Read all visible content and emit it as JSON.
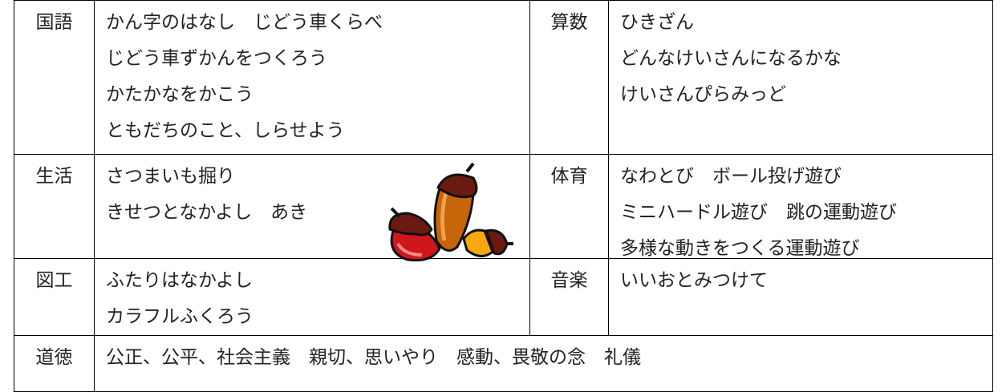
{
  "table": {
    "rows": [
      [
        {
          "subject": "国語",
          "lines": [
            "かん字のはなし　じどう車くらべ",
            "じどう車ずかんをつくろう",
            "かたかなをかこう",
            "ともだちのこと、しらせよう"
          ]
        },
        {
          "subject": "算数",
          "lines": [
            "ひきざん",
            "どんなけいさんになるかな",
            "けいさんぴらみっど"
          ]
        }
      ],
      [
        {
          "subject": "生活",
          "lines": [
            "さつまいも掘り",
            "きせつとなかよし　あき"
          ]
        },
        {
          "subject": "体育",
          "lines": [
            "なわとび　ボール投げ遊び",
            "ミニハードル遊び　跳の運動遊び",
            "多様な動きをつくる運動遊び"
          ]
        }
      ],
      [
        {
          "subject": "図工",
          "lines": [
            "ふたりはなかよし",
            "カラフルふくろう"
          ]
        },
        {
          "subject": "音楽",
          "lines": [
            "いいおとみつけて"
          ]
        }
      ],
      [
        {
          "subject": "道徳",
          "lines": [
            "公正、公平、社会主義　親切、思いやり　感動、畏敬の念　礼儀"
          ]
        }
      ]
    ]
  }
}
